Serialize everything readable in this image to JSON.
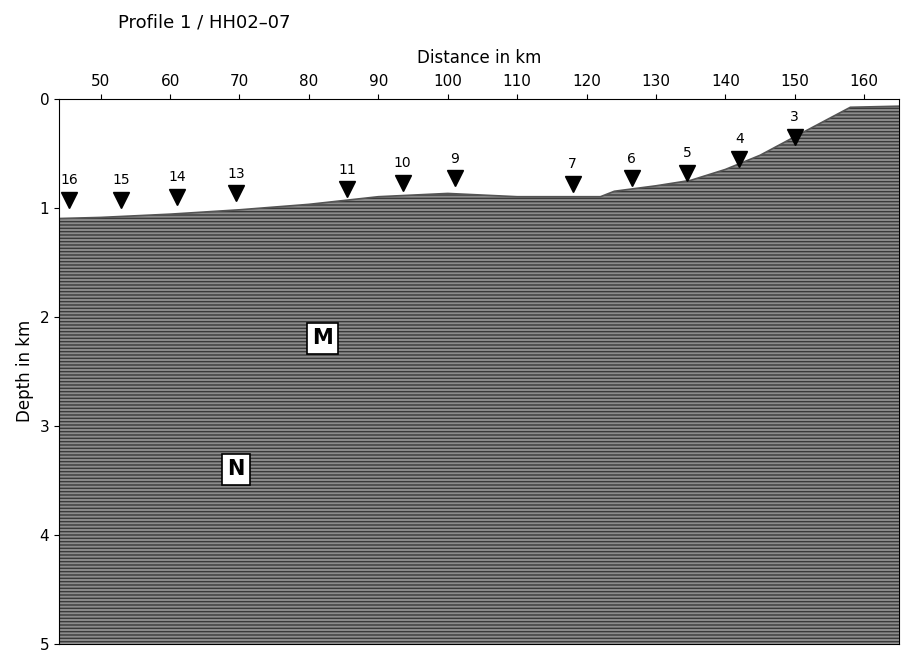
{
  "chart_data": {
    "type": "seismic_section",
    "title": "Profile 1 / HH02–07",
    "x_label": "Distance in km",
    "y_label": "Depth in km",
    "xlim": [
      44,
      165
    ],
    "xticks": [
      50,
      60,
      70,
      80,
      90,
      100,
      110,
      120,
      130,
      140,
      150,
      160
    ],
    "ylim": [
      5,
      0
    ],
    "yticks": [
      0,
      1,
      2,
      3,
      4,
      5
    ],
    "seafloor": {
      "x": [
        44,
        50,
        60,
        70,
        80,
        90,
        100,
        110,
        122,
        124,
        130,
        135,
        140,
        145,
        150,
        158,
        165
      ],
      "depth": [
        1.1,
        1.09,
        1.06,
        1.02,
        0.97,
        0.9,
        0.87,
        0.9,
        0.9,
        0.85,
        0.8,
        0.75,
        0.65,
        0.52,
        0.35,
        0.08,
        0.07
      ]
    },
    "stations": [
      {
        "label": "16",
        "x": 45.5,
        "depth": 0.93
      },
      {
        "label": "15",
        "x": 53,
        "depth": 0.93
      },
      {
        "label": "14",
        "x": 61,
        "depth": 0.9
      },
      {
        "label": "13",
        "x": 69.5,
        "depth": 0.87
      },
      {
        "label": "11",
        "x": 85.5,
        "depth": 0.83
      },
      {
        "label": "10",
        "x": 93.5,
        "depth": 0.77
      },
      {
        "label": "9",
        "x": 101,
        "depth": 0.73
      },
      {
        "label": "7",
        "x": 118,
        "depth": 0.78
      },
      {
        "label": "6",
        "x": 126.5,
        "depth": 0.73
      },
      {
        "label": "5",
        "x": 134.5,
        "depth": 0.68
      },
      {
        "label": "4",
        "x": 142,
        "depth": 0.55
      },
      {
        "label": "3",
        "x": 150,
        "depth": 0.35
      }
    ],
    "annotations": [
      {
        "text": "M",
        "x": 82,
        "depth": 2.2
      },
      {
        "text": "N",
        "x": 69.5,
        "depth": 3.4
      }
    ],
    "color": "#8c8c8c",
    "marker": "v",
    "grid": false
  }
}
